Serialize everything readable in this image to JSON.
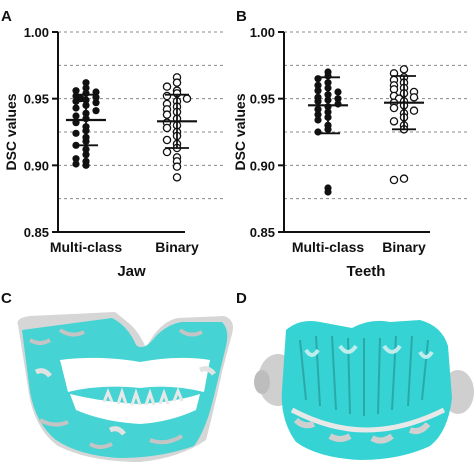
{
  "panel_letters": {
    "a": "A",
    "b": "B",
    "c": "C",
    "d": "D"
  },
  "chart_data": [
    {
      "type": "scatter",
      "panel": "A",
      "ylabel": "DSC values",
      "xlabel": "Jaw",
      "ylim": [
        0.85,
        1.0
      ],
      "yticks": [
        "0.85",
        "0.90",
        "0.95",
        "1.00"
      ],
      "categories": [
        "Multi-class",
        "Binary"
      ],
      "reference_lines": [
        0.875,
        0.9,
        0.925,
        0.95,
        0.975,
        1.0
      ],
      "series": [
        {
          "category": "Multi-class",
          "marker": "filled",
          "values": [
            0.962,
            0.958,
            0.956,
            0.955,
            0.954,
            0.952,
            0.951,
            0.95,
            0.949,
            0.948,
            0.947,
            0.945,
            0.943,
            0.941,
            0.939,
            0.937,
            0.935,
            0.932,
            0.929,
            0.926,
            0.924,
            0.921,
            0.918,
            0.915,
            0.912,
            0.908,
            0.905,
            0.903,
            0.901,
            0.9
          ],
          "mean": 0.934,
          "sd_upper": 0.953,
          "sd_lower": 0.915
        },
        {
          "category": "Binary",
          "marker": "open",
          "values": [
            0.966,
            0.962,
            0.959,
            0.956,
            0.954,
            0.952,
            0.95,
            0.948,
            0.946,
            0.944,
            0.942,
            0.94,
            0.938,
            0.935,
            0.932,
            0.93,
            0.928,
            0.925,
            0.922,
            0.919,
            0.916,
            0.913,
            0.91,
            0.906,
            0.903,
            0.899,
            0.891
          ],
          "mean": 0.933,
          "sd_upper": 0.953,
          "sd_lower": 0.913
        }
      ]
    },
    {
      "type": "scatter",
      "panel": "B",
      "ylabel": "DSC values",
      "xlabel": "Teeth",
      "ylim": [
        0.85,
        1.0
      ],
      "yticks": [
        "0.85",
        "0.90",
        "0.95",
        "1.00"
      ],
      "categories": [
        "Multi-class",
        "Binary"
      ],
      "reference_lines": [
        0.875,
        0.9,
        0.925,
        0.95,
        0.975,
        1.0
      ],
      "series": [
        {
          "category": "Multi-class",
          "marker": "filled",
          "values": [
            0.97,
            0.967,
            0.965,
            0.962,
            0.96,
            0.958,
            0.956,
            0.955,
            0.953,
            0.951,
            0.95,
            0.949,
            0.948,
            0.946,
            0.944,
            0.942,
            0.94,
            0.938,
            0.936,
            0.934,
            0.93,
            0.927,
            0.925,
            0.883,
            0.88
          ],
          "mean": 0.945,
          "sd_upper": 0.966,
          "sd_lower": 0.924
        },
        {
          "category": "Binary",
          "marker": "open",
          "values": [
            0.972,
            0.969,
            0.966,
            0.964,
            0.962,
            0.96,
            0.958,
            0.957,
            0.955,
            0.954,
            0.952,
            0.951,
            0.95,
            0.948,
            0.947,
            0.945,
            0.943,
            0.941,
            0.939,
            0.936,
            0.933,
            0.93,
            0.927,
            0.89,
            0.889
          ],
          "mean": 0.947,
          "sd_upper": 0.967,
          "sd_lower": 0.927
        }
      ]
    }
  ],
  "colors": {
    "axis": "#111111",
    "grid": "#888888",
    "mesh_gray": "#d8d8d8",
    "mesh_cyan": "#35d3d3"
  }
}
